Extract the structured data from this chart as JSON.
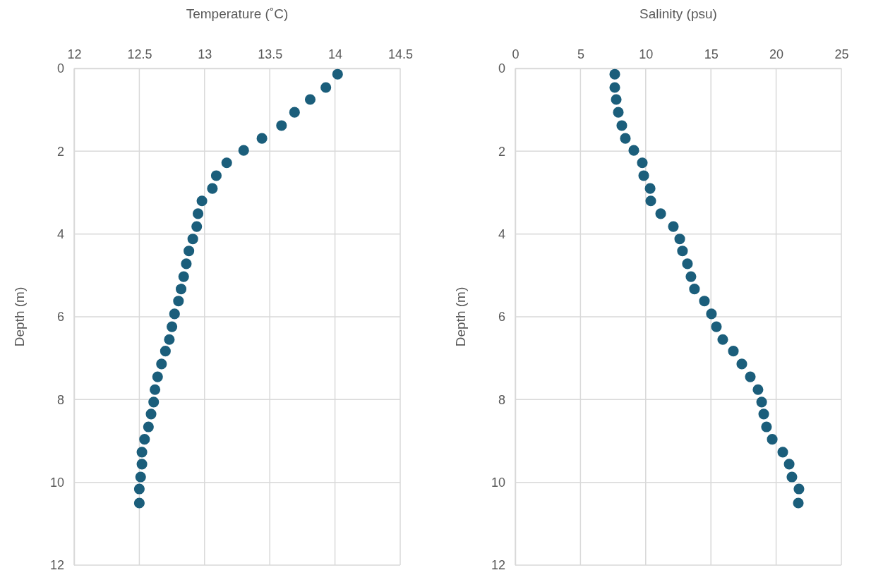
{
  "chart_data": [
    {
      "type": "scatter",
      "xlabel": "Temperature (˚C)",
      "ylabel": "Depth (m)",
      "xlim": [
        12,
        14.5
      ],
      "xticks": [
        12,
        12.5,
        13,
        13.5,
        14,
        14.5
      ],
      "ylim": [
        12,
        0
      ],
      "yticks": [
        0,
        2,
        4,
        6,
        8,
        10,
        12
      ],
      "grid": true,
      "marker": "circle",
      "x": [
        14.02,
        13.93,
        13.81,
        13.69,
        13.59,
        13.44,
        13.3,
        13.17,
        13.09,
        13.06,
        12.98,
        12.95,
        12.94,
        12.91,
        12.88,
        12.86,
        12.84,
        12.82,
        12.8,
        12.77,
        12.75,
        12.73,
        12.7,
        12.67,
        12.64,
        12.62,
        12.61,
        12.59,
        12.57,
        12.54,
        12.52,
        12.52,
        12.51,
        12.5,
        12.5
      ],
      "series": [
        {
          "color": "#1b5e7b",
          "values": [
            0.14,
            0.46,
            0.75,
            1.06,
            1.38,
            1.69,
            1.98,
            2.28,
            2.59,
            2.9,
            3.2,
            3.51,
            3.82,
            4.12,
            4.41,
            4.72,
            5.03,
            5.33,
            5.62,
            5.93,
            6.24,
            6.55,
            6.83,
            7.14,
            7.45,
            7.76,
            8.06,
            8.35,
            8.66,
            8.96,
            9.27,
            9.56,
            9.87,
            10.16,
            10.5
          ]
        }
      ]
    },
    {
      "type": "scatter",
      "xlabel": "Salinity (psu)",
      "ylabel": "Depth (m)",
      "xlim": [
        0,
        25
      ],
      "xticks": [
        0,
        5,
        10,
        15,
        20,
        25
      ],
      "ylim": [
        12,
        0
      ],
      "yticks": [
        0,
        2,
        4,
        6,
        8,
        10,
        12
      ],
      "grid": true,
      "marker": "circle",
      "x": [
        7.63,
        7.63,
        7.74,
        7.9,
        8.17,
        8.44,
        9.09,
        9.74,
        9.85,
        10.34,
        10.39,
        11.15,
        12.12,
        12.61,
        12.82,
        13.2,
        13.47,
        13.74,
        14.5,
        15.04,
        15.42,
        15.91,
        16.72,
        17.37,
        18.02,
        18.61,
        18.89,
        19.05,
        19.26,
        19.7,
        20.51,
        21.0,
        21.21,
        21.75,
        21.7
      ],
      "series": [
        {
          "color": "#1b5e7b",
          "values": [
            0.14,
            0.46,
            0.75,
            1.06,
            1.38,
            1.69,
            1.98,
            2.28,
            2.59,
            2.9,
            3.2,
            3.51,
            3.82,
            4.12,
            4.41,
            4.72,
            5.03,
            5.33,
            5.62,
            5.93,
            6.24,
            6.55,
            6.83,
            7.14,
            7.45,
            7.76,
            8.06,
            8.35,
            8.66,
            8.96,
            9.27,
            9.56,
            9.87,
            10.16,
            10.5
          ]
        }
      ]
    }
  ]
}
